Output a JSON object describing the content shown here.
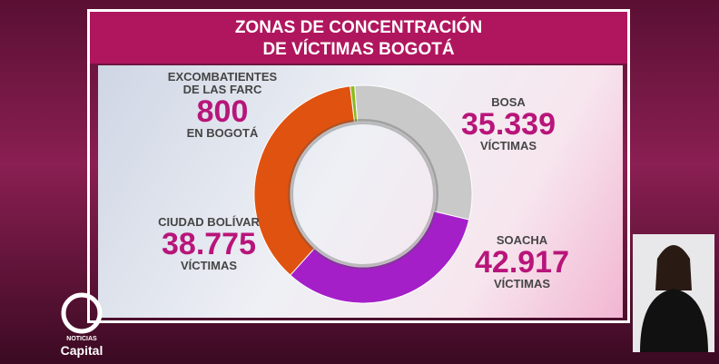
{
  "chart_data": {
    "type": "pie",
    "donut": true,
    "title": [
      "ZONAS DE CONCENTRACIÓN",
      "DE VÍCTIMAS BOGOTÁ"
    ],
    "categories": [
      "EXCOMBATIENTES DE LAS FARC",
      "BOSA",
      "CIUDAD BOLÍVAR",
      "SOACHA"
    ],
    "values": [
      800,
      35339,
      38775,
      42917
    ],
    "value_labels": [
      "800",
      "35.339",
      "38.775",
      "42.917"
    ],
    "units": [
      "EN BOGOTÁ",
      "VÍCTIMAS",
      "VÍCTIMAS",
      "VÍCTIMAS"
    ],
    "colors": [
      "#8dba1f",
      "#c9c9c9",
      "#a51fc9",
      "#e0520f"
    ]
  },
  "logo": {
    "top": "NOTICIAS",
    "name": "Capital"
  }
}
